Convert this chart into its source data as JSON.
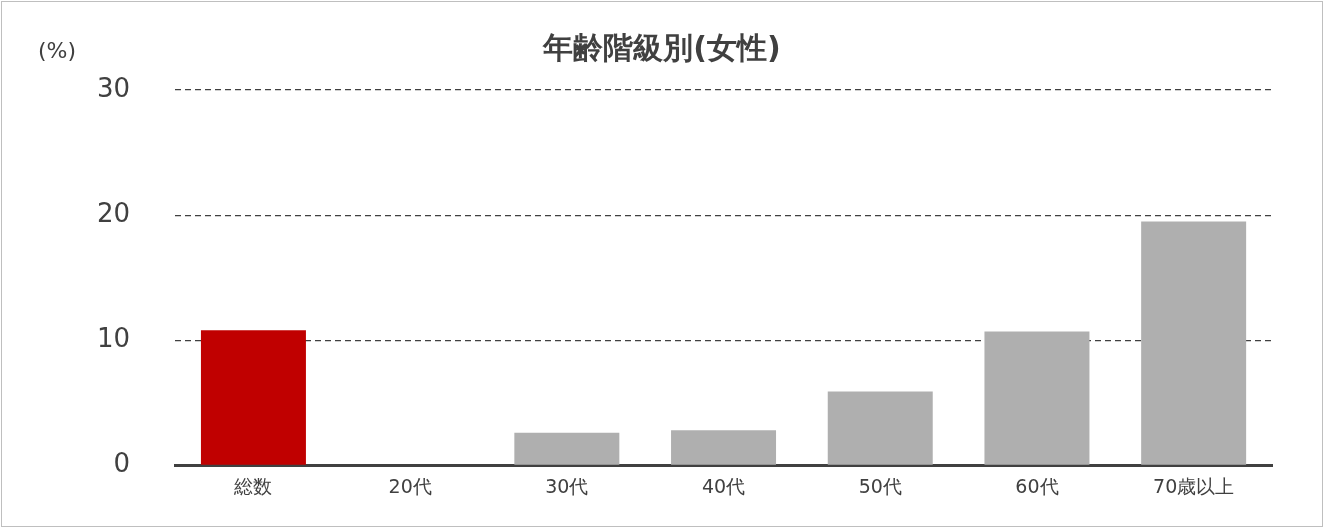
{
  "chart_data": {
    "type": "bar",
    "title": "年齢階級別(女性)",
    "ylabel": "(%)",
    "categories": [
      "総数",
      "20代",
      "30代",
      "40代",
      "50代",
      "60代",
      "70歳以上"
    ],
    "values": [
      10.8,
      0,
      2.6,
      2.8,
      5.9,
      10.7,
      19.5
    ],
    "colors": [
      "#c00000",
      "#afafaf",
      "#afafaf",
      "#afafaf",
      "#afafaf",
      "#afafaf",
      "#afafaf"
    ],
    "ylim": [
      0,
      30
    ],
    "yticks": [
      0,
      10,
      20,
      30
    ],
    "grid": "y",
    "line_style": "dashed",
    "legend": false
  }
}
